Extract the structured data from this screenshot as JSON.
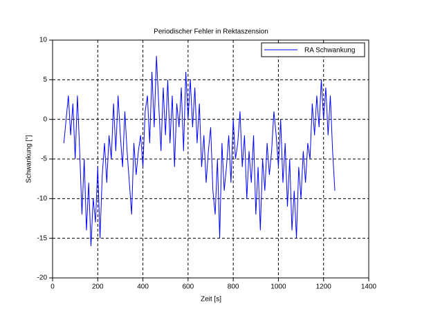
{
  "chart_data": {
    "type": "line",
    "title": "Periodischer Fehler in Rektaszension",
    "xlabel": "Zeit [s]",
    "ylabel": "Schwankung [°]",
    "x": [
      50,
      60,
      70,
      80,
      90,
      100,
      110,
      120,
      130,
      140,
      150,
      160,
      170,
      180,
      190,
      200,
      210,
      220,
      230,
      240,
      250,
      260,
      270,
      280,
      290,
      300,
      310,
      320,
      330,
      340,
      350,
      360,
      370,
      380,
      390,
      400,
      410,
      420,
      430,
      440,
      450,
      460,
      470,
      480,
      490,
      500,
      510,
      520,
      530,
      540,
      550,
      560,
      570,
      580,
      590,
      600,
      610,
      620,
      630,
      640,
      650,
      660,
      670,
      680,
      690,
      700,
      710,
      720,
      730,
      740,
      750,
      760,
      770,
      780,
      790,
      800,
      810,
      820,
      830,
      840,
      850,
      860,
      870,
      880,
      890,
      900,
      910,
      920,
      930,
      940,
      950,
      960,
      970,
      980,
      990,
      1000,
      1010,
      1020,
      1030,
      1040,
      1050,
      1060,
      1070,
      1080,
      1090,
      1100,
      1110,
      1120,
      1130,
      1140,
      1150,
      1160,
      1170,
      1180,
      1190,
      1200,
      1210,
      1220,
      1230,
      1240,
      1250
    ],
    "series": [
      {
        "name": "RA Schwankung",
        "color": "#0000ff",
        "values": [
          -3,
          0,
          3,
          -2,
          2,
          -5,
          3,
          -4,
          -12,
          -5,
          -14,
          -8,
          -16,
          -10,
          -13,
          -6,
          -15,
          -7,
          -3,
          -8,
          -2,
          -5,
          2,
          -4,
          3,
          -2,
          -6,
          1,
          -4,
          -8,
          -12,
          -3,
          -7,
          -4,
          -2,
          -6,
          1,
          3,
          -3,
          6,
          -1,
          8,
          2,
          -4,
          4,
          -2,
          5,
          -3,
          3,
          -6,
          2,
          -1,
          4,
          -4,
          6,
          0,
          5,
          -1,
          4,
          -3,
          2,
          -6,
          -2,
          -8,
          -4,
          -1,
          -9,
          -12,
          -5,
          -15,
          -3,
          -9,
          -6,
          -2,
          -8,
          0,
          -5,
          -3,
          1,
          -6,
          -2,
          -10,
          -4,
          -8,
          -2,
          -12,
          -6,
          -14,
          -5,
          -9,
          -3,
          -7,
          -4,
          1,
          -2,
          -6,
          0,
          -8,
          -3,
          -11,
          -5,
          -14,
          -9,
          -15,
          -6,
          -10,
          -4,
          -8,
          -3,
          -5,
          2,
          -2,
          3,
          -1,
          5,
          0,
          4,
          -2,
          3,
          -4,
          -9
        ]
      }
    ],
    "xlim": [
      0,
      1400
    ],
    "xticks": [
      0,
      200,
      400,
      600,
      800,
      1000,
      1200,
      1400
    ],
    "ylim": [
      -20,
      10
    ],
    "yticks": [
      -20,
      -15,
      -10,
      -5,
      0,
      5,
      10
    ],
    "grid": true,
    "legend": "upper right"
  }
}
